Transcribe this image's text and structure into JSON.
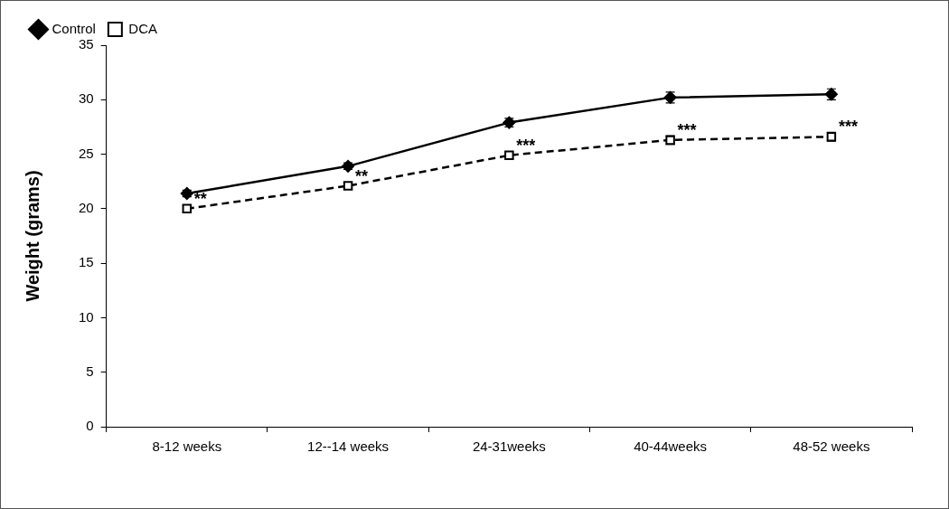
{
  "chart_data": {
    "type": "line",
    "ylabel": "Weight (grams)",
    "categories": [
      "8-12 weeks",
      "12--14 weeks",
      "24-31weeks",
      "40-44weeks",
      "48-52 weeks"
    ],
    "series": [
      {
        "name": "Control",
        "color": "#000000",
        "values": [
          21.4,
          23.9,
          27.9,
          30.2,
          30.5
        ],
        "errors": [
          0.3,
          0.3,
          0.4,
          0.5,
          0.5
        ],
        "marker": "diamond",
        "line_style": "solid"
      },
      {
        "name": "DCA",
        "color": "#000000",
        "values": [
          20.0,
          22.1,
          24.9,
          26.3,
          26.6
        ],
        "errors": [
          0.3,
          0.3,
          0.3,
          0.4,
          0.4
        ],
        "marker": "square",
        "line_style": "dashed"
      }
    ],
    "ylim": [
      0,
      35
    ],
    "yticks": [
      0,
      5,
      10,
      15,
      20,
      25,
      30,
      35
    ],
    "grid": false,
    "legend": "top left",
    "annotations": [
      {
        "text": "**",
        "x": "8-12 weeks",
        "y": 20.0
      },
      {
        "text": "**",
        "x": "12--14 weeks",
        "y": 22.1
      },
      {
        "text": "***",
        "x": "24-31weeks",
        "y": 24.9
      },
      {
        "text": "***",
        "x": "40-44weeks",
        "y": 26.3
      },
      {
        "text": "***",
        "x": "48-52 weeks",
        "y": 26.6
      }
    ]
  }
}
